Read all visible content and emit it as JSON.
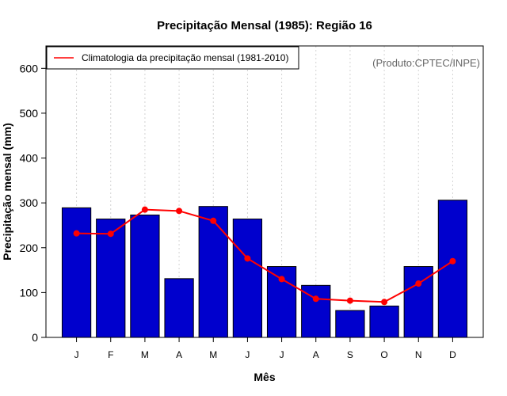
{
  "chart_data": {
    "type": "bar",
    "title": "Precipitação Mensal (1985): Região 16",
    "xlabel": "Mês",
    "ylabel": "Precipitação mensal (mm)",
    "ylim": [
      0,
      650
    ],
    "yticks": [
      0,
      100,
      200,
      300,
      400,
      500,
      600
    ],
    "categories": [
      "J",
      "F",
      "M",
      "A",
      "M",
      "J",
      "J",
      "A",
      "S",
      "O",
      "N",
      "D"
    ],
    "series": [
      {
        "name": "Precipitação mensal (1985)",
        "kind": "bar",
        "color": "#0000cd",
        "values": [
          289,
          264,
          273,
          131,
          292,
          264,
          158,
          116,
          60,
          70,
          158,
          306
        ]
      },
      {
        "name": "Climatologia da precipitação mensal (1981-2010)",
        "kind": "line",
        "color": "#ff0000",
        "values": [
          232,
          231,
          285,
          282,
          260,
          176,
          130,
          86,
          82,
          79,
          120,
          170
        ]
      }
    ],
    "legend": {
      "position": "top-left",
      "label": "Climatologia da precipitação mensal (1981-2010)"
    },
    "annotation": "(Produto:CPTEC/INPE)",
    "grid": "vertical-dotted"
  }
}
